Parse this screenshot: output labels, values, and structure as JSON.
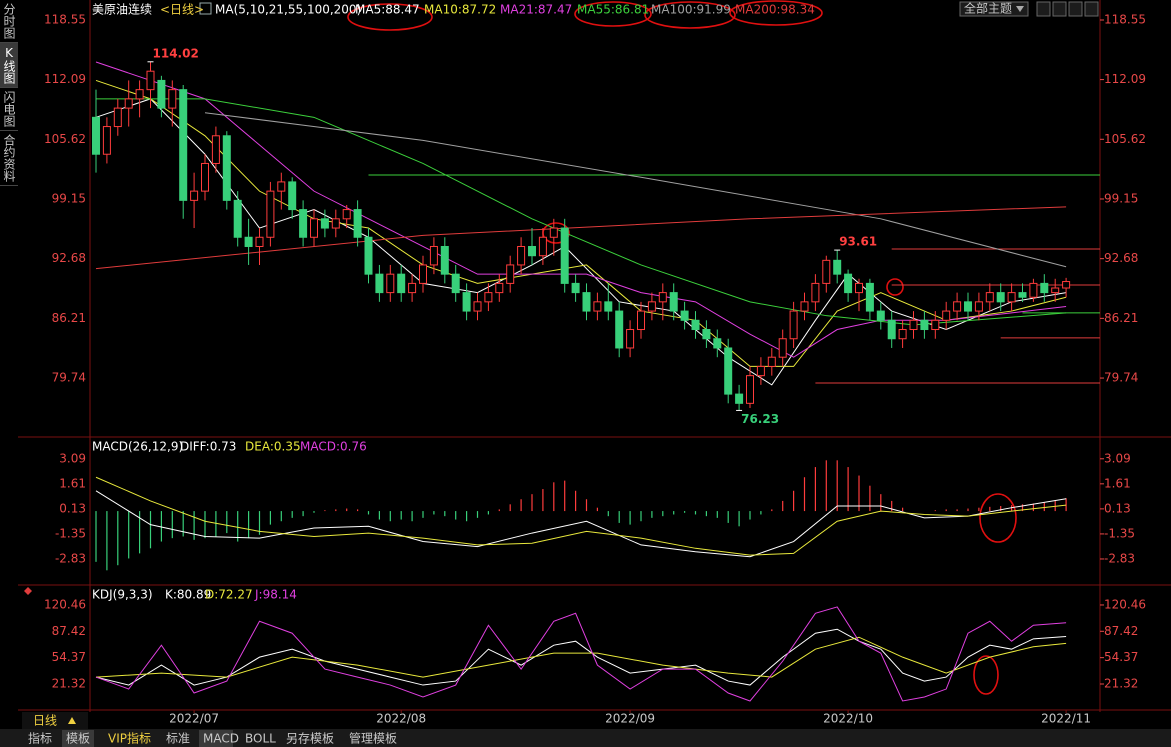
{
  "chart_data": [
    {
      "type": "candlestick",
      "title": "美原油连续",
      "period": "<日线>",
      "indicator": "MA(5,10,21,55,100,200)",
      "up_color": "#ff3c3c",
      "down_color": "#38d07a",
      "ylim": [
        73.35,
        119.2
      ],
      "yticks": [
        118.55,
        112.09,
        105.62,
        99.15,
        92.68,
        86.21,
        79.74
      ],
      "candles": [
        [
          108,
          111,
          102,
          104
        ],
        [
          104,
          108,
          103,
          107
        ],
        [
          107,
          110,
          106,
          109
        ],
        [
          109,
          112,
          107,
          110
        ],
        [
          110,
          112,
          108,
          111
        ],
        [
          111,
          114.02,
          109,
          113
        ],
        [
          112,
          112.5,
          108,
          109
        ],
        [
          109,
          112,
          107,
          111
        ],
        [
          111,
          111.5,
          97,
          99
        ],
        [
          99,
          102,
          96,
          100
        ],
        [
          100,
          104,
          99,
          103
        ],
        [
          103,
          107,
          102,
          106
        ],
        [
          106,
          106.5,
          98,
          99
        ],
        [
          99,
          100,
          94,
          95
        ],
        [
          95,
          97,
          92,
          94
        ],
        [
          94,
          96,
          92,
          95
        ],
        [
          95,
          101,
          94,
          100
        ],
        [
          100,
          102,
          98,
          101
        ],
        [
          101,
          101.5,
          97,
          98
        ],
        [
          98,
          99,
          94,
          95
        ],
        [
          95,
          98,
          94,
          97
        ],
        [
          97,
          98,
          95,
          96
        ],
        [
          96,
          98,
          95,
          97
        ],
        [
          97,
          98.5,
          96,
          98
        ],
        [
          98,
          99,
          94,
          95
        ],
        [
          95,
          96,
          90,
          91
        ],
        [
          91,
          92,
          88,
          89
        ],
        [
          89,
          92,
          88,
          91
        ],
        [
          91,
          92,
          88,
          89
        ],
        [
          89,
          91,
          88,
          90
        ],
        [
          90,
          93,
          89,
          92
        ],
        [
          92,
          95,
          91,
          94
        ],
        [
          94,
          95,
          90,
          91
        ],
        [
          91,
          92,
          88,
          89
        ],
        [
          89,
          90,
          86,
          87
        ],
        [
          87,
          89,
          86,
          88
        ],
        [
          88,
          90,
          87,
          89
        ],
        [
          89,
          91,
          88,
          90
        ],
        [
          90,
          93,
          89,
          92
        ],
        [
          92,
          95,
          91,
          94
        ],
        [
          94,
          96,
          92,
          93
        ],
        [
          93,
          96,
          92,
          95
        ],
        [
          95,
          97,
          93,
          96
        ],
        [
          96,
          97,
          89,
          90
        ],
        [
          90,
          91,
          88,
          89
        ],
        [
          89,
          90,
          86,
          87
        ],
        [
          87,
          89,
          86,
          88
        ],
        [
          88,
          90,
          86,
          87
        ],
        [
          87,
          88,
          82,
          83
        ],
        [
          83,
          86,
          82,
          85
        ],
        [
          85,
          88,
          84,
          87
        ],
        [
          87,
          89,
          86,
          88
        ],
        [
          88,
          90,
          86,
          89
        ],
        [
          89,
          90,
          86,
          87
        ],
        [
          87,
          88,
          85,
          86
        ],
        [
          86,
          87,
          84,
          85
        ],
        [
          85,
          86,
          83,
          84
        ],
        [
          84,
          85,
          82,
          83
        ],
        [
          83,
          84,
          77,
          78
        ],
        [
          78,
          79,
          76.23,
          77
        ],
        [
          77,
          81,
          76.5,
          80
        ],
        [
          80,
          82,
          79,
          81
        ],
        [
          81,
          83,
          80,
          82
        ],
        [
          82,
          85,
          81,
          84
        ],
        [
          84,
          88,
          83,
          87
        ],
        [
          87,
          89,
          86,
          88
        ],
        [
          88,
          91,
          87,
          90
        ],
        [
          90,
          93,
          89,
          92.5
        ],
        [
          92.5,
          93.61,
          90,
          91
        ],
        [
          91,
          91.5,
          88,
          89
        ],
        [
          89,
          90.5,
          87,
          90
        ],
        [
          90,
          90.5,
          86,
          87
        ],
        [
          87,
          88,
          85,
          86
        ],
        [
          86,
          87,
          83,
          84
        ],
        [
          84,
          86,
          83,
          85
        ],
        [
          85,
          87,
          84,
          86
        ],
        [
          86,
          87,
          84,
          85
        ],
        [
          85,
          87,
          84,
          86
        ],
        [
          86,
          88,
          85,
          87
        ],
        [
          87,
          89,
          86,
          88
        ],
        [
          88,
          89,
          86,
          87
        ],
        [
          87,
          89,
          86,
          88
        ],
        [
          88,
          90,
          87,
          89
        ],
        [
          89,
          90,
          87,
          88
        ],
        [
          88,
          90,
          87,
          89
        ],
        [
          89,
          90,
          88,
          88.5
        ],
        [
          88.5,
          90.5,
          88,
          90
        ],
        [
          90,
          91,
          88,
          89
        ],
        [
          89,
          90.5,
          88,
          89.5
        ],
        [
          89.5,
          90.6,
          88.5,
          90.2
        ]
      ],
      "series": [
        {
          "name": "MA5:88.47",
          "color": "#ffffff",
          "x": [
            0,
            5,
            10,
            15,
            20,
            25,
            30,
            35,
            40,
            43,
            48,
            53,
            58,
            62,
            66,
            69,
            73,
            78,
            84,
            89
          ],
          "values": [
            108,
            110,
            104,
            96,
            98,
            95,
            90,
            89,
            92,
            94,
            88,
            87,
            82,
            79,
            86,
            91,
            87,
            85,
            88,
            89
          ]
        },
        {
          "name": "MA10:87.72",
          "color": "#e8e83c",
          "x": [
            0,
            5,
            10,
            15,
            20,
            25,
            30,
            35,
            40,
            45,
            50,
            55,
            60,
            64,
            68,
            72,
            78,
            84,
            89
          ],
          "values": [
            112,
            110,
            106,
            100,
            97,
            96,
            92,
            90,
            91,
            92,
            87,
            86,
            81,
            81,
            87,
            89,
            86,
            87,
            88.5
          ]
        },
        {
          "name": "MA21:87.47",
          "color": "#e040e0",
          "x": [
            0,
            5,
            10,
            15,
            20,
            25,
            30,
            35,
            40,
            45,
            50,
            55,
            60,
            64,
            68,
            72,
            78,
            84,
            89
          ],
          "values": [
            114,
            112,
            110,
            105,
            100,
            97,
            94,
            91,
            91,
            91,
            89,
            88,
            84.5,
            82,
            85,
            86,
            86,
            86.8,
            87.5
          ]
        },
        {
          "name": "MA55:86.81",
          "color": "#3cd03c",
          "x": [
            0,
            10,
            20,
            30,
            40,
            50,
            60,
            67,
            75,
            89
          ],
          "values": [
            110,
            110,
            108,
            103,
            97,
            92,
            88,
            86.5,
            85.5,
            86.8
          ]
        },
        {
          "name": "MA100:91.99",
          "color": "#a0a0a0",
          "x": [
            10,
            30,
            50,
            72,
            89
          ],
          "values": [
            108.5,
            105.5,
            101.5,
            97,
            91.8
          ]
        },
        {
          "name": "MA200:98.34",
          "color": "#e03c3c",
          "x": [
            0,
            30,
            60,
            89
          ],
          "values": [
            91.6,
            95.2,
            97,
            98.3
          ]
        }
      ],
      "levels": [
        {
          "value": 101.75,
          "x0": 25,
          "color": "#3cd03c"
        },
        {
          "value": 93.73,
          "x0": 73,
          "color": "#e03c3c"
        },
        {
          "value": 89.83,
          "x0": 73,
          "color": "#e03c3c"
        },
        {
          "value": 86.8,
          "x0": 85,
          "color": "#3cd03c"
        },
        {
          "value": 84.1,
          "x0": 83,
          "color": "#e03c3c"
        },
        {
          "value": 79.2,
          "x0": 66,
          "color": "#e03c3c"
        }
      ],
      "annotations": [
        {
          "value": 114.02,
          "x": 5,
          "color": "#ff4040",
          "side": "top"
        },
        {
          "value": 93.61,
          "x": 68,
          "color": "#ff4040",
          "side": "top"
        },
        {
          "value": 76.23,
          "x": 59,
          "color": "#38d07a",
          "side": "bottom"
        }
      ]
    },
    {
      "type": "macd",
      "title": "MACD(26,12,9)",
      "ylim": [
        -4.25,
        4.2
      ],
      "yticks": [
        3.09,
        1.61,
        0.13,
        -1.35,
        -2.83
      ],
      "series": [
        {
          "name": "DIFF:0.73",
          "color": "#ffffff",
          "x": [
            0,
            5,
            10,
            15,
            20,
            25,
            30,
            35,
            40,
            45,
            50,
            55,
            60,
            64,
            68,
            72,
            76,
            80,
            84,
            89
          ],
          "values": [
            1.2,
            -0.8,
            -1.5,
            -1.6,
            -1,
            -0.9,
            -1.8,
            -2.1,
            -1.3,
            -0.6,
            -2,
            -2.4,
            -2.7,
            -1.8,
            0.3,
            0.3,
            -0.4,
            -0.3,
            0.2,
            0.73
          ]
        },
        {
          "name": "DEA:0.35",
          "color": "#e8e83c",
          "x": [
            0,
            5,
            10,
            15,
            20,
            25,
            30,
            35,
            40,
            45,
            50,
            55,
            60,
            64,
            68,
            72,
            76,
            80,
            84,
            89
          ],
          "values": [
            2,
            0.6,
            -0.6,
            -1.2,
            -1.5,
            -1.3,
            -1.6,
            -2,
            -1.9,
            -1.2,
            -1.6,
            -2.2,
            -2.6,
            -2.5,
            -0.6,
            0,
            -0.2,
            -0.3,
            0,
            0.35
          ]
        }
      ],
      "histogram": {
        "name": "MACD:0.76",
        "color": "#e040e0",
        "up_color": "#ff3c3c",
        "down_color": "#38d07a",
        "values": [
          -3,
          -3.5,
          -3.2,
          -2.8,
          -2.5,
          -2.2,
          -1.8,
          -1.6,
          -1.5,
          -1.7,
          -1.6,
          -1.5,
          -1.3,
          -1.8,
          -1.6,
          -1.4,
          -0.8,
          -0.6,
          -0.4,
          -0.3,
          -0.1,
          0.05,
          0.1,
          0.15,
          0.1,
          -0.2,
          -0.5,
          -0.6,
          -0.5,
          -0.6,
          -0.4,
          -0.2,
          -0.3,
          -0.5,
          -0.6,
          -0.4,
          -0.2,
          0.1,
          0.4,
          0.7,
          1,
          1.3,
          1.7,
          1.8,
          1.2,
          0.7,
          0.2,
          -0.3,
          -0.7,
          -0.8,
          -0.6,
          -0.4,
          -0.3,
          -0.2,
          -0.1,
          -0.2,
          -0.3,
          -0.4,
          -0.7,
          -0.9,
          -0.5,
          -0.2,
          0.1,
          0.6,
          1.2,
          2,
          2.6,
          3,
          3,
          2.6,
          2.1,
          1.5,
          1,
          0.6,
          0.2,
          0,
          0,
          0.05,
          0.1,
          0.1,
          0.15,
          0.2,
          0.25,
          0.3,
          0.35,
          0.4,
          0.45,
          0.5,
          0.6,
          0.76
        ]
      }
    },
    {
      "type": "line",
      "title": "KDJ(9,3,3)",
      "ylim": [
        -11.3,
        143
      ],
      "yticks": [
        120.46,
        87.42,
        54.37,
        21.32
      ],
      "xticks": [
        {
          "value": 9,
          "label": "2022/07"
        },
        {
          "value": 28,
          "label": "2022/08"
        },
        {
          "value": 49,
          "label": "2022/09"
        },
        {
          "value": 69,
          "label": "2022/10"
        },
        {
          "value": 89,
          "label": "2022/11"
        }
      ],
      "series": [
        {
          "name": "K:80.89",
          "color": "#ffffff",
          "x": [
            0,
            3,
            6,
            9,
            12,
            15,
            18,
            21,
            24,
            27,
            30,
            33,
            36,
            39,
            42,
            44,
            46,
            49,
            52,
            55,
            58,
            60,
            63,
            66,
            68,
            70,
            72,
            74,
            76,
            78,
            80,
            82,
            84,
            86,
            89
          ],
          "values": [
            30,
            20,
            45,
            20,
            30,
            55,
            65,
            50,
            40,
            30,
            20,
            25,
            65,
            45,
            70,
            75,
            55,
            35,
            40,
            45,
            25,
            20,
            55,
            85,
            90,
            75,
            65,
            35,
            25,
            30,
            55,
            70,
            65,
            78,
            80.89
          ]
        },
        {
          "name": "D:72.27",
          "color": "#e8e83c",
          "x": [
            0,
            6,
            12,
            18,
            24,
            30,
            36,
            42,
            46,
            52,
            58,
            62,
            66,
            70,
            74,
            78,
            82,
            86,
            89
          ],
          "values": [
            30,
            35,
            30,
            55,
            45,
            30,
            45,
            60,
            60,
            45,
            35,
            30,
            65,
            80,
            55,
            35,
            55,
            68,
            72.27
          ]
        },
        {
          "name": "J:98.14",
          "color": "#e040e0",
          "x": [
            0,
            3,
            6,
            9,
            12,
            15,
            18,
            21,
            24,
            27,
            30,
            33,
            36,
            39,
            42,
            44,
            46,
            49,
            52,
            55,
            58,
            60,
            63,
            66,
            68,
            70,
            72,
            74,
            76,
            78,
            80,
            82,
            84,
            86,
            89
          ],
          "values": [
            30,
            15,
            70,
            10,
            25,
            100,
            85,
            40,
            30,
            20,
            5,
            20,
            95,
            40,
            100,
            110,
            45,
            15,
            40,
            40,
            10,
            0,
            50,
            110,
            118,
            75,
            60,
            0,
            5,
            15,
            85,
            100,
            75,
            95,
            98.14
          ]
        }
      ]
    }
  ],
  "ui": {
    "sidebar": [
      "分时图",
      "K线图",
      "闪电图",
      "合约资料"
    ],
    "theme_button": "全部主题",
    "period_button": "日线",
    "tabs": [
      "指标",
      "模板",
      "VIP指标",
      "标准",
      "MACD",
      "BOLL",
      "另存模板",
      "管理模板"
    ]
  }
}
